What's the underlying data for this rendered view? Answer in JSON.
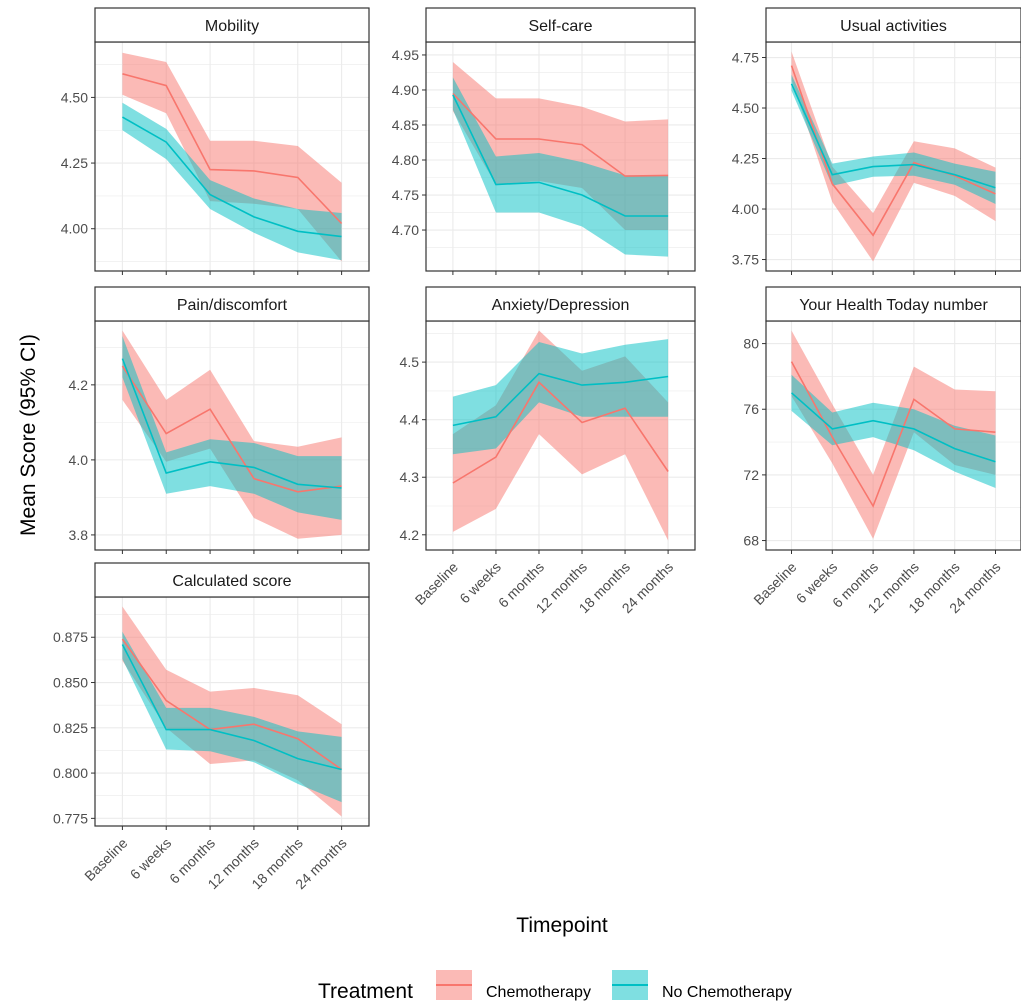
{
  "chart_data": {
    "type": "line",
    "xlabel": "Timepoint",
    "ylabel": "Mean Score (95% CI)",
    "timepoints": [
      "Baseline",
      "6 weeks",
      "6 months",
      "12 months",
      "18 months",
      "24 months"
    ],
    "legend": {
      "title": "Treatment",
      "position": "bottom",
      "entries": [
        {
          "name": "Chemotherapy",
          "line_color": "#F8766D",
          "fill_color": "#F8766D"
        },
        {
          "name": "No Chemotherapy",
          "line_color": "#00BFC4",
          "fill_color": "#00BFC4"
        }
      ]
    },
    "panels": [
      {
        "title": "Mobility",
        "ylim": [
          3.875,
          4.675
        ],
        "yticks": [
          "4.00",
          "4.25",
          "4.50"
        ],
        "series": [
          {
            "name": "Chemotherapy",
            "mean": [
              4.59,
              4.545,
              4.225,
              4.22,
              4.195,
              4.02
            ],
            "lower": [
              4.51,
              4.44,
              4.105,
              4.095,
              4.075,
              3.875
            ],
            "upper": [
              4.67,
              4.635,
              4.335,
              4.335,
              4.315,
              4.175
            ]
          },
          {
            "name": "No Chemotherapy",
            "mean": [
              4.425,
              4.33,
              4.13,
              4.045,
              3.99,
              3.97
            ],
            "lower": [
              4.375,
              4.265,
              4.075,
              3.985,
              3.91,
              3.88
            ],
            "upper": [
              4.48,
              4.38,
              4.185,
              4.115,
              4.075,
              4.06
            ]
          }
        ]
      },
      {
        "title": "Self-care",
        "ylim": [
          4.655,
          4.955
        ],
        "yticks": [
          "4.70",
          "4.75",
          "4.80",
          "4.85",
          "4.90",
          "4.95"
        ],
        "series": [
          {
            "name": "Chemotherapy",
            "mean": [
              4.895,
              4.83,
              4.83,
              4.822,
              4.777,
              4.778
            ],
            "lower": [
              4.87,
              4.765,
              4.77,
              4.76,
              4.7,
              4.7
            ],
            "upper": [
              4.94,
              4.888,
              4.888,
              4.876,
              4.855,
              4.858
            ]
          },
          {
            "name": "No Chemotherapy",
            "mean": [
              4.893,
              4.765,
              4.768,
              4.75,
              4.72,
              4.72
            ],
            "lower": [
              4.872,
              4.725,
              4.725,
              4.705,
              4.665,
              4.662
            ],
            "upper": [
              4.918,
              4.805,
              4.81,
              4.797,
              4.778,
              4.778
            ]
          }
        ]
      },
      {
        "title": "Usual activities",
        "ylim": [
          3.74,
          4.78
        ],
        "yticks": [
          "3.75",
          "4.00",
          "4.25",
          "4.50",
          "4.75"
        ],
        "series": [
          {
            "name": "Chemotherapy",
            "mean": [
              4.71,
              4.125,
              3.87,
              4.23,
              4.165,
              4.075
            ],
            "lower": [
              4.64,
              4.035,
              3.74,
              4.13,
              4.065,
              3.94
            ],
            "upper": [
              4.78,
              4.21,
              3.98,
              4.335,
              4.3,
              4.205
            ]
          },
          {
            "name": "No Chemotherapy",
            "mean": [
              4.62,
              4.17,
              4.21,
              4.22,
              4.17,
              4.105
            ],
            "lower": [
              4.585,
              4.115,
              4.16,
              4.165,
              4.12,
              4.025
            ],
            "upper": [
              4.665,
              4.225,
              4.26,
              4.28,
              4.225,
              4.185
            ]
          }
        ]
      },
      {
        "title": "Pain/discomfort",
        "ylim": [
          3.785,
          4.345
        ],
        "yticks": [
          "3.8",
          "4.0",
          "4.2"
        ],
        "series": [
          {
            "name": "Chemotherapy",
            "mean": [
              4.25,
              4.07,
              4.135,
              3.95,
              3.915,
              3.93
            ],
            "lower": [
              4.16,
              3.995,
              4.03,
              3.845,
              3.79,
              3.8
            ],
            "upper": [
              4.345,
              4.16,
              4.24,
              4.05,
              4.035,
              4.06
            ]
          },
          {
            "name": "No Chemotherapy",
            "mean": [
              4.27,
              3.965,
              3.995,
              3.98,
              3.935,
              3.925
            ],
            "lower": [
              4.22,
              3.91,
              3.93,
              3.91,
              3.86,
              3.84
            ],
            "upper": [
              4.33,
              4.02,
              4.055,
              4.045,
              4.01,
              4.01
            ]
          }
        ]
      },
      {
        "title": "Anxiety/Depression",
        "ylim": [
          4.19,
          4.555
        ],
        "yticks": [
          "4.2",
          "4.3",
          "4.4",
          "4.5"
        ],
        "series": [
          {
            "name": "Chemotherapy",
            "mean": [
              4.29,
              4.335,
              4.465,
              4.395,
              4.42,
              4.31
            ],
            "lower": [
              4.205,
              4.245,
              4.375,
              4.305,
              4.34,
              4.19
            ],
            "upper": [
              4.375,
              4.425,
              4.555,
              4.485,
              4.51,
              4.43
            ]
          },
          {
            "name": "No Chemotherapy",
            "mean": [
              4.39,
              4.405,
              4.48,
              4.46,
              4.465,
              4.475
            ],
            "lower": [
              4.34,
              4.35,
              4.43,
              4.405,
              4.405,
              4.405
            ],
            "upper": [
              4.44,
              4.46,
              4.535,
              4.515,
              4.53,
              4.54
            ]
          }
        ]
      },
      {
        "title": "Your Health Today number",
        "ylim": [
          68.0,
          80.8
        ],
        "yticks": [
          "68",
          "72",
          "76",
          "80"
        ],
        "series": [
          {
            "name": "Chemotherapy",
            "mean": [
              78.9,
              74.3,
              70.1,
              76.6,
              74.8,
              74.6
            ],
            "lower": [
              76.8,
              72.7,
              68.1,
              74.6,
              72.6,
              72.0
            ],
            "upper": [
              80.8,
              76.3,
              72.0,
              78.6,
              77.2,
              77.1
            ]
          },
          {
            "name": "No Chemotherapy",
            "mean": [
              77.0,
              74.8,
              75.3,
              74.8,
              73.6,
              72.8
            ],
            "lower": [
              75.9,
              73.8,
              74.3,
              73.5,
              72.2,
              71.2
            ],
            "upper": [
              78.1,
              75.8,
              76.4,
              76.0,
              75.0,
              74.4
            ]
          }
        ]
      },
      {
        "title": "Calculated score",
        "ylim": [
          0.776,
          0.892
        ],
        "yticks": [
          "0.775",
          "0.800",
          "0.825",
          "0.850",
          "0.875"
        ],
        "series": [
          {
            "name": "Chemotherapy",
            "mean": [
              0.874,
              0.84,
              0.824,
              0.827,
              0.819,
              0.802
            ],
            "lower": [
              0.862,
              0.825,
              0.805,
              0.807,
              0.796,
              0.776
            ],
            "upper": [
              0.892,
              0.857,
              0.845,
              0.847,
              0.843,
              0.827
            ]
          },
          {
            "name": "No Chemotherapy",
            "mean": [
              0.871,
              0.824,
              0.824,
              0.818,
              0.808,
              0.802
            ],
            "lower": [
              0.863,
              0.813,
              0.812,
              0.806,
              0.794,
              0.784
            ],
            "upper": [
              0.878,
              0.836,
              0.836,
              0.831,
              0.823,
              0.82
            ]
          }
        ]
      }
    ]
  }
}
